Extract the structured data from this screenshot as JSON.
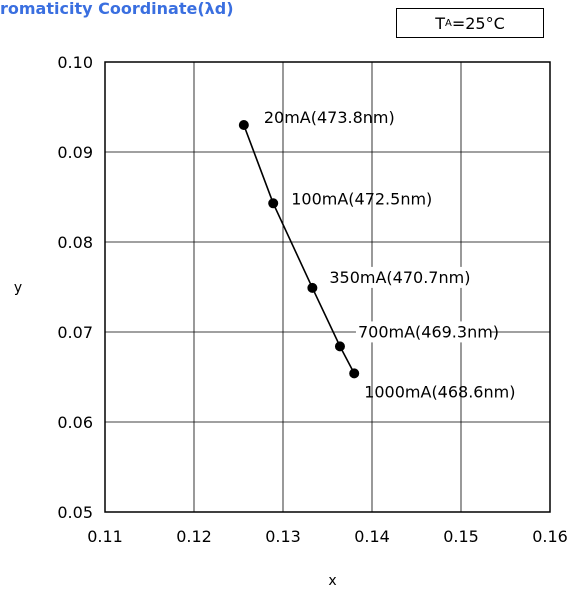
{
  "header": {
    "title": "romaticity Coordinate(λd)",
    "condition_prefix": "T",
    "condition_sub": "A",
    "condition_suffix": "=25°C"
  },
  "chart_data": {
    "type": "scatter",
    "title": "romaticity Coordinate(λd)",
    "xlabel": "x",
    "ylabel": "y",
    "xlim": [
      0.11,
      0.16
    ],
    "ylim": [
      0.05,
      0.1
    ],
    "xticks": [
      "0.11",
      "0.12",
      "0.13",
      "0.14",
      "0.15",
      "0.16"
    ],
    "yticks": [
      "0.10",
      "0.09",
      "0.08",
      "0.07",
      "0.06",
      "0.05"
    ],
    "grid": true,
    "series": [
      {
        "points": [
          {
            "x": 0.1256,
            "y": 0.093,
            "label": "20mA(473.8nm)"
          },
          {
            "x": 0.1289,
            "y": 0.0843,
            "label": "100mA(472.5nm)"
          },
          {
            "x": 0.1333,
            "y": 0.0749,
            "label": "350mA(470.7nm)"
          },
          {
            "x": 0.1364,
            "y": 0.0684,
            "label": "700mA(469.3nm)"
          },
          {
            "x": 0.138,
            "y": 0.0654,
            "label": "1000mA(468.6nm)"
          }
        ]
      }
    ],
    "line_color": "#000000",
    "marker_color": "#000000",
    "grid_color": "#000000"
  }
}
